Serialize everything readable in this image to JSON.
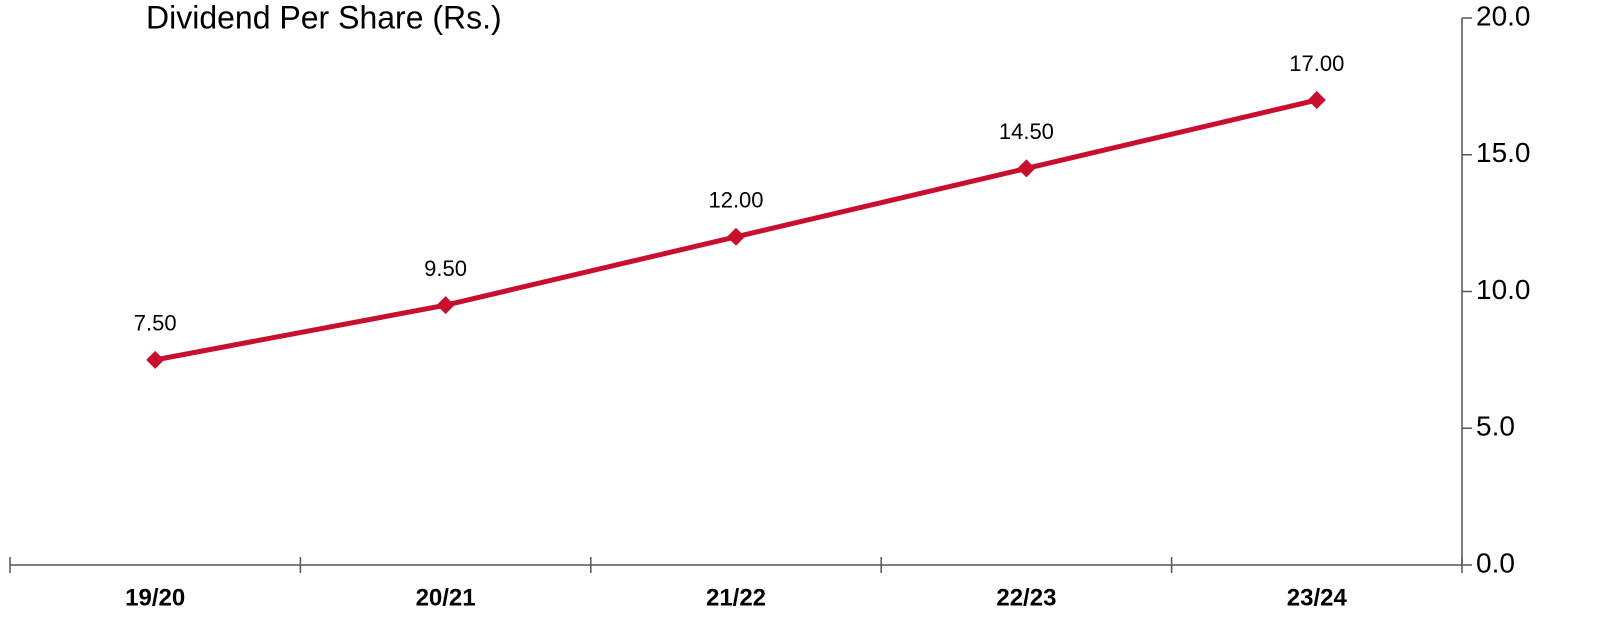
{
  "chart_data": {
    "type": "line",
    "title": "Dividend Per Share (Rs.)",
    "categories": [
      "19/20",
      "20/21",
      "21/22",
      "22/23",
      "23/24"
    ],
    "values": [
      7.5,
      9.5,
      12,
      14.5,
      17
    ],
    "value_labels": [
      "7.50",
      "9.50",
      "12.00",
      "14.50",
      "17.00"
    ],
    "color": "#c8102e",
    "ylim": [
      0,
      20
    ],
    "yticks": [
      {
        "value": 0,
        "label": "0.0"
      },
      {
        "value": 5,
        "label": "5.0"
      },
      {
        "value": 10,
        "label": "10.0"
      },
      {
        "value": 15,
        "label": "15.0"
      },
      {
        "value": 20,
        "label": "20.0"
      }
    ],
    "y_axis_side": "right"
  }
}
